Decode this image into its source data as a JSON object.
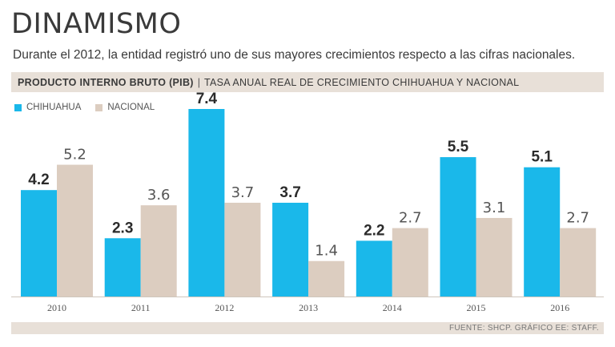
{
  "title": "DINAMISMO",
  "subtitle": "Durante el 2012, la entidad registró uno de sus mayores crecimientos respecto a las cifras nacionales.",
  "header": {
    "bold": "PRODUCTO INTERNO BRUTO (PIB)",
    "separator": "|",
    "desc": "TASA ANUAL REAL DE CRECIMIENTO CHIHUAHUA Y NACIONAL"
  },
  "legend": [
    {
      "label": "CHIHUAHUA",
      "color": "#1ab8ea"
    },
    {
      "label": "NACIONAL",
      "color": "#dccdc0"
    }
  ],
  "footer": "FUENTE: SHCP.  GRÁFICO EE: STAFF.",
  "chart_data": {
    "type": "bar",
    "title": "PRODUCTO INTERNO BRUTO (PIB)",
    "xlabel": "",
    "ylabel": "",
    "grid": false,
    "ylim": [
      0,
      7.4
    ],
    "categories": [
      "2010",
      "2011",
      "2012",
      "2013",
      "2014",
      "2015",
      "2016"
    ],
    "series": [
      {
        "name": "CHIHUAHUA",
        "color": "#1ab8ea",
        "values": [
          4.2,
          2.3,
          7.4,
          3.7,
          2.2,
          5.5,
          5.1
        ]
      },
      {
        "name": "NACIONAL",
        "color": "#dccdc0",
        "values": [
          5.2,
          3.6,
          3.7,
          1.4,
          2.7,
          3.1,
          2.7
        ]
      }
    ]
  }
}
